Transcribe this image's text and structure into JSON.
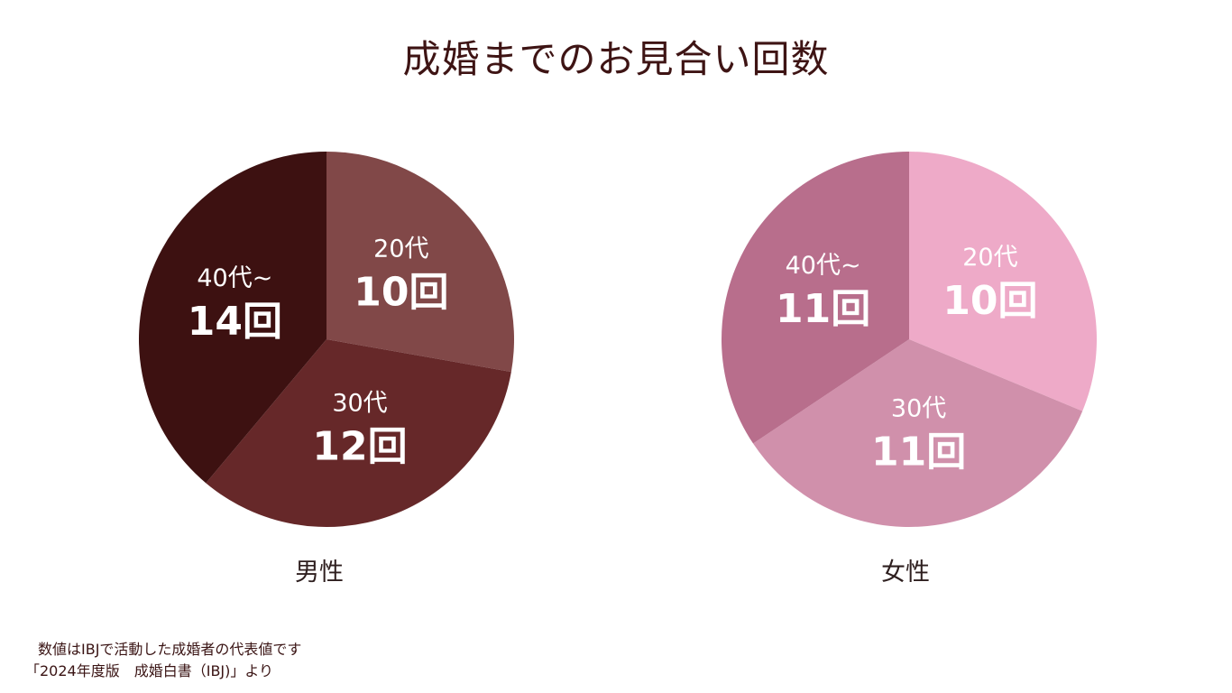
{
  "title": "成婚までのお見合い回数",
  "footnote": {
    "line1": "数値はIBJで活動した成婚者の代表値です",
    "line2": "「2024年度版　成婚白書（IBJ)」より"
  },
  "chart_data": [
    {
      "type": "pie",
      "label": "男性",
      "slices": [
        {
          "category": "20代",
          "value": 10,
          "value_label": "10回",
          "color": "#814848"
        },
        {
          "category": "30代",
          "value": 12,
          "value_label": "12回",
          "color": "#662829"
        },
        {
          "category": "40代~",
          "value": 14,
          "value_label": "14回",
          "color": "#3d1111"
        }
      ]
    },
    {
      "type": "pie",
      "label": "女性",
      "slices": [
        {
          "category": "20代",
          "value": 10,
          "value_label": "10回",
          "color": "#eeaac8"
        },
        {
          "category": "30代",
          "value": 11,
          "value_label": "11回",
          "color": "#d090ab"
        },
        {
          "category": "40代~",
          "value": 11,
          "value_label": "11回",
          "color": "#b86e8c"
        }
      ]
    }
  ]
}
